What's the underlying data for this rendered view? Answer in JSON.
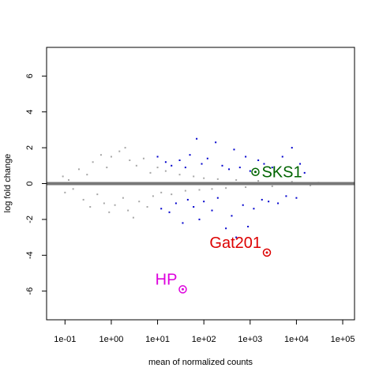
{
  "chart_data": {
    "type": "scatter",
    "title": "",
    "xlabel": "mean of normalized counts",
    "ylabel": "log fold change",
    "xscale": "log10",
    "xlim": [
      0.04,
      180000
    ],
    "ylim": [
      -7.6,
      7.6
    ],
    "x_ticks": [
      0.1,
      1,
      10,
      100,
      1000,
      10000,
      100000
    ],
    "x_tick_labels": [
      "1e-01",
      "1e+00",
      "1e+01",
      "1e+02",
      "1e+03",
      "1e+04",
      "1e+05"
    ],
    "y_ticks": [
      -6,
      -4,
      -2,
      0,
      2,
      4,
      6
    ],
    "y_tick_labels": [
      "-6",
      "-4",
      "-2",
      "0",
      "2",
      "4",
      "6"
    ],
    "reference_line": {
      "y": 0,
      "color": "#777777"
    },
    "colors": {
      "not_significant": "#a6a6a6",
      "significant": "#0000cd",
      "SKS1": "#006400",
      "Gat201": "#dd0000",
      "HP": "#dd00dd"
    },
    "series": [
      {
        "color": "#a6a6a6",
        "points": [
          [
            0.09,
            0.4
          ],
          [
            0.1,
            -0.5
          ],
          [
            0.12,
            0.2
          ],
          [
            0.15,
            -0.3
          ],
          [
            0.2,
            0.8
          ],
          [
            0.25,
            -0.9
          ],
          [
            0.3,
            0.5
          ],
          [
            0.35,
            -1.3
          ],
          [
            0.4,
            1.2
          ],
          [
            0.5,
            -0.6
          ],
          [
            0.6,
            1.6
          ],
          [
            0.7,
            -1.1
          ],
          [
            0.8,
            0.9
          ],
          [
            0.9,
            -1.6
          ],
          [
            1.0,
            1.5
          ],
          [
            1.2,
            -1.2
          ],
          [
            1.5,
            1.8
          ],
          [
            1.8,
            -0.8
          ],
          [
            2.0,
            2.0
          ],
          [
            2.3,
            -1.5
          ],
          [
            2.5,
            1.3
          ],
          [
            3.0,
            -1.9
          ],
          [
            3.5,
            1.0
          ],
          [
            4.0,
            -1.0
          ],
          [
            5.0,
            1.4
          ],
          [
            6.0,
            -1.3
          ],
          [
            7.0,
            0.6
          ],
          [
            8.0,
            -0.7
          ],
          [
            10,
            0.9
          ],
          [
            12,
            -0.5
          ],
          [
            15,
            0.7
          ],
          [
            20,
            -0.6
          ],
          [
            30,
            0.5
          ],
          [
            40,
            -0.4
          ],
          [
            60,
            0.4
          ],
          [
            80,
            -0.35
          ],
          [
            100,
            0.3
          ],
          [
            150,
            -0.3
          ],
          [
            200,
            0.25
          ],
          [
            300,
            -0.25
          ],
          [
            500,
            0.2
          ],
          [
            800,
            -0.2
          ],
          [
            1500,
            0.15
          ],
          [
            3000,
            -0.15
          ],
          [
            8000,
            0.1
          ],
          [
            20000,
            -0.1
          ],
          [
            30000,
            0.05
          ]
        ]
      },
      {
        "color": "#0000cd",
        "points": [
          [
            10,
            1.5
          ],
          [
            12,
            -1.4
          ],
          [
            15,
            1.2
          ],
          [
            18,
            -1.6
          ],
          [
            20,
            1.0
          ],
          [
            25,
            -1.1
          ],
          [
            30,
            1.3
          ],
          [
            35,
            -2.2
          ],
          [
            40,
            0.9
          ],
          [
            45,
            -0.9
          ],
          [
            50,
            1.6
          ],
          [
            60,
            -1.3
          ],
          [
            70,
            2.5
          ],
          [
            80,
            -2.0
          ],
          [
            90,
            1.1
          ],
          [
            100,
            -1.0
          ],
          [
            120,
            1.4
          ],
          [
            150,
            -1.5
          ],
          [
            180,
            2.3
          ],
          [
            200,
            -0.8
          ],
          [
            250,
            1.0
          ],
          [
            300,
            -2.5
          ],
          [
            350,
            0.8
          ],
          [
            400,
            -1.8
          ],
          [
            450,
            1.9
          ],
          [
            500,
            -3.0
          ],
          [
            600,
            0.9
          ],
          [
            700,
            -1.2
          ],
          [
            800,
            1.5
          ],
          [
            900,
            -2.4
          ],
          [
            1000,
            0.7
          ],
          [
            1200,
            -1.4
          ],
          [
            1500,
            1.3
          ],
          [
            1800,
            -0.9
          ],
          [
            2000,
            1.1
          ],
          [
            2500,
            -1.0
          ],
          [
            3000,
            0.9
          ],
          [
            4000,
            -1.1
          ],
          [
            5000,
            1.5
          ],
          [
            6000,
            -0.7
          ],
          [
            8000,
            2.0
          ],
          [
            10000,
            -0.8
          ],
          [
            12000,
            1.1
          ],
          [
            15000,
            0.6
          ]
        ]
      }
    ],
    "highlighted": [
      {
        "label": "SKS1",
        "x": 1300,
        "y": 0.65,
        "color": "#006400"
      },
      {
        "label": "Gat201",
        "x": 2300,
        "y": -3.85,
        "color": "#dd0000"
      },
      {
        "label": "HP",
        "x": 35,
        "y": -5.9,
        "color": "#dd00dd"
      }
    ]
  }
}
